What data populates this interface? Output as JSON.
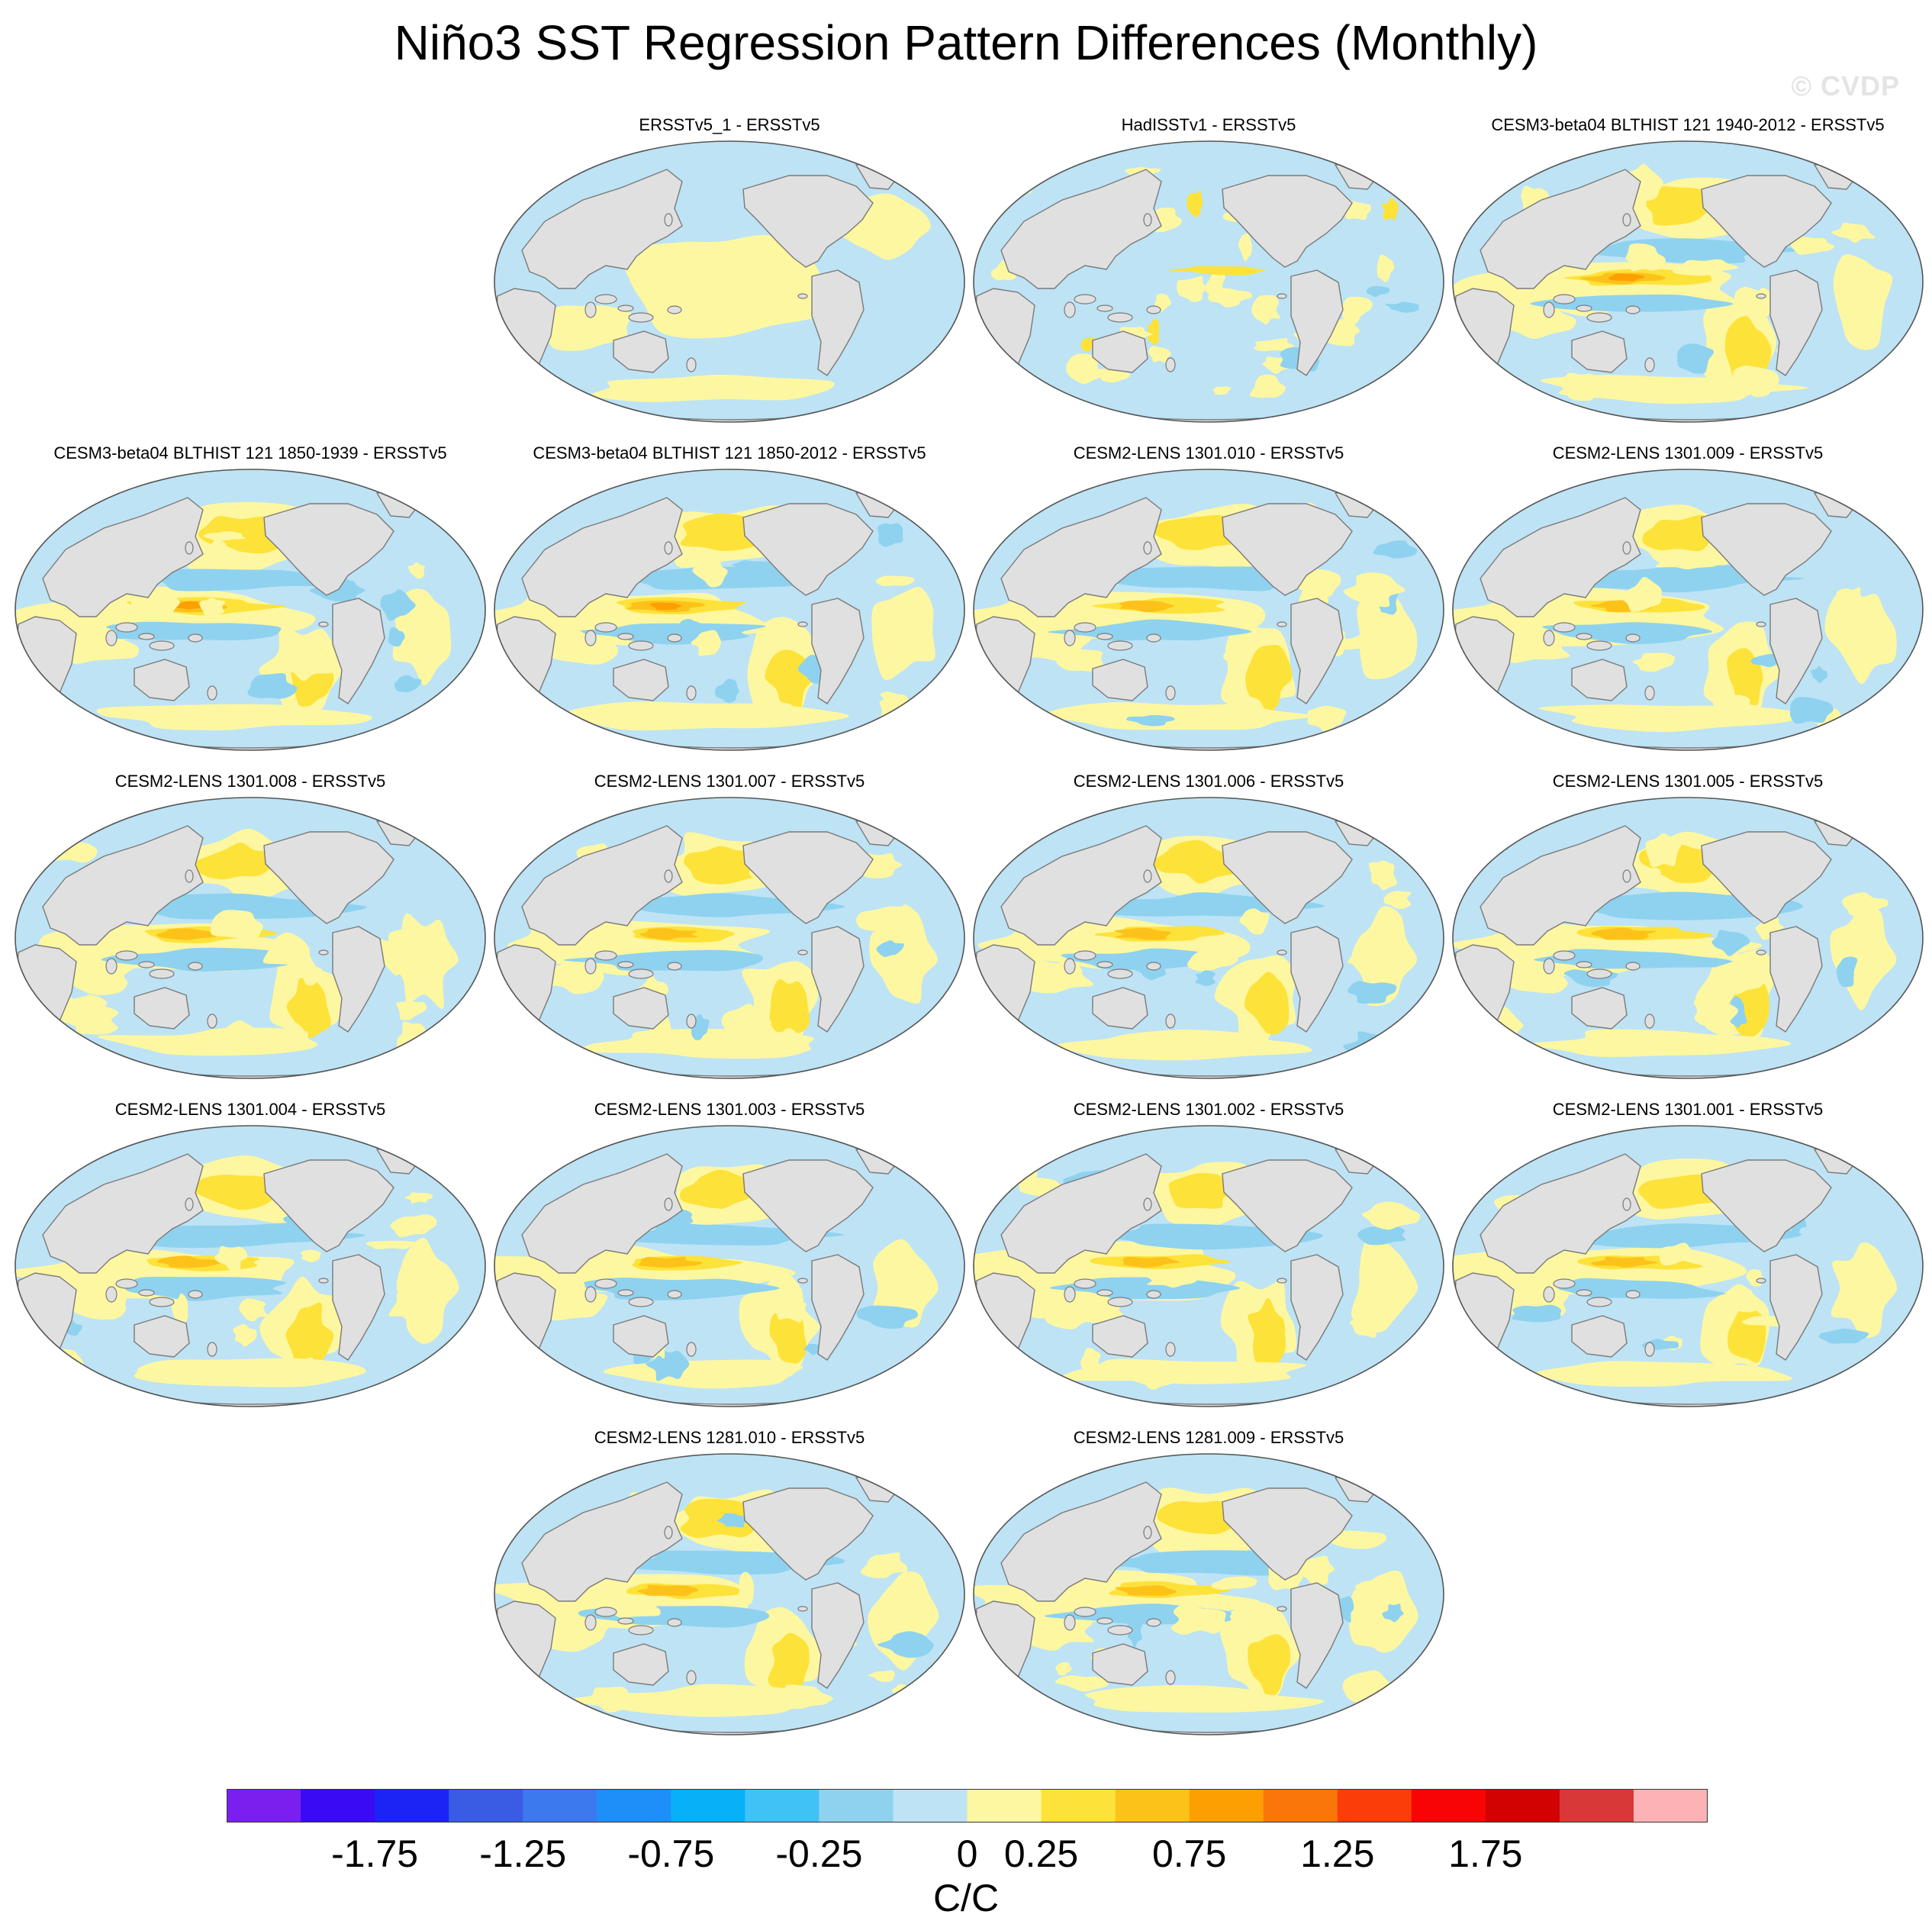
{
  "figure": {
    "title": "Niño3 SST Regression Pattern Differences (Monthly)",
    "watermark": "© CVDP"
  },
  "panels": [
    {
      "title": "ERSSTv5_1 - ERSSTv5"
    },
    {
      "title": "HadISSTv1 - ERSSTv5"
    },
    {
      "title": "CESM3-beta04 BLTHIST 121 1940-2012 - ERSSTv5"
    },
    {
      "title": "CESM3-beta04 BLTHIST 121 1850-1939 - ERSSTv5"
    },
    {
      "title": "CESM3-beta04 BLTHIST 121 1850-2012 - ERSSTv5"
    },
    {
      "title": "CESM2-LENS 1301.010 - ERSSTv5"
    },
    {
      "title": "CESM2-LENS 1301.009 - ERSSTv5"
    },
    {
      "title": "CESM2-LENS 1301.008 - ERSSTv5"
    },
    {
      "title": "CESM2-LENS 1301.007 - ERSSTv5"
    },
    {
      "title": "CESM2-LENS 1301.006 - ERSSTv5"
    },
    {
      "title": "CESM2-LENS 1301.005 - ERSSTv5"
    },
    {
      "title": "CESM2-LENS 1301.004 - ERSSTv5"
    },
    {
      "title": "CESM2-LENS 1301.003 - ERSSTv5"
    },
    {
      "title": "CESM2-LENS 1301.002 - ERSSTv5"
    },
    {
      "title": "CESM2-LENS 1301.001 - ERSSTv5"
    },
    {
      "title": "CESM2-LENS 1281.010 - ERSSTv5"
    },
    {
      "title": "CESM2-LENS 1281.009 - ERSSTv5"
    }
  ],
  "colorbar": {
    "units": "C/C",
    "tick_labels": [
      "-1.75",
      "-1.25",
      "-0.75",
      "-0.25",
      "0",
      "0.25",
      "0.75",
      "1.25",
      "1.75"
    ],
    "colors": [
      "#7b1fef",
      "#3a0af5",
      "#1c24f5",
      "#3a5be4",
      "#3c78ee",
      "#1e8ff8",
      "#08b0f8",
      "#41c2f6",
      "#8ed2ef",
      "#bde3f5",
      "#fdf7a1",
      "#fde23a",
      "#fdc21a",
      "#fd9f02",
      "#fb7609",
      "#fb3d09",
      "#f90404",
      "#d10202",
      "#d93838",
      "#fdb3b5"
    ]
  },
  "map_colors": {
    "land": "#e0e0e0",
    "coast": "#7a7a7a",
    "ocean_base": "#bde3f5",
    "weak_positive": "#fdf7a1",
    "moderate_positive": "#fde23a",
    "strong_positive": "#fdc21a",
    "stronger_positive": "#fd9f02",
    "weak_negative": "#8ed2ef",
    "moderate_negative": "#41c2f6"
  }
}
